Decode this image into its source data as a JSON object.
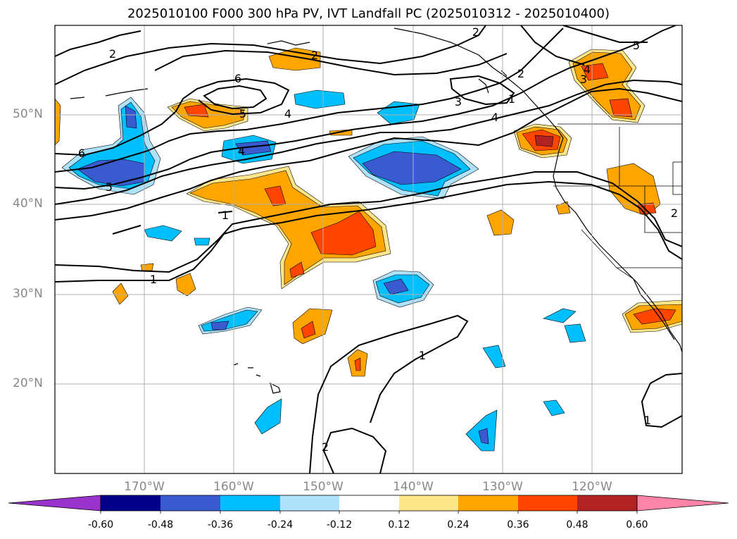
{
  "title": "2025010100 F000 300 hPa PV, IVT Landfall PC (2025010312 - 2025010400)",
  "map": {
    "extent": {
      "lon_min": 180,
      "lon_max": 110,
      "lat_min": 10,
      "lat_max": 60,
      "lon_hemisphere": "W"
    },
    "lat_ticks": [
      {
        "value": 50,
        "label": "50°N"
      },
      {
        "value": 40,
        "label": "40°N"
      },
      {
        "value": 30,
        "label": "30°N"
      },
      {
        "value": 20,
        "label": "20°N"
      }
    ],
    "lon_ticks": [
      {
        "value": 170,
        "label": "170°W"
      },
      {
        "value": 160,
        "label": "160°W"
      },
      {
        "value": 150,
        "label": "150°W"
      },
      {
        "value": 140,
        "label": "140°W"
      },
      {
        "value": 130,
        "label": "130°W"
      },
      {
        "value": 120,
        "label": "120°W"
      }
    ],
    "gridlines": true,
    "contour_labels": [
      "1",
      "2",
      "3",
      "4",
      "5",
      "6"
    ]
  },
  "colorbar": {
    "ticks": [
      "-0.60",
      "-0.48",
      "-0.36",
      "-0.24",
      "-0.12",
      "0.12",
      "0.24",
      "0.36",
      "0.48",
      "0.60"
    ],
    "colors": [
      "#9933cc",
      "#00008b",
      "#3a5bd0",
      "#00bfff",
      "#aee2fa",
      "#ffffff",
      "#fde68a",
      "#ffa500",
      "#ff4500",
      "#b22222",
      "#ff85a8"
    ],
    "extend": "both"
  }
}
